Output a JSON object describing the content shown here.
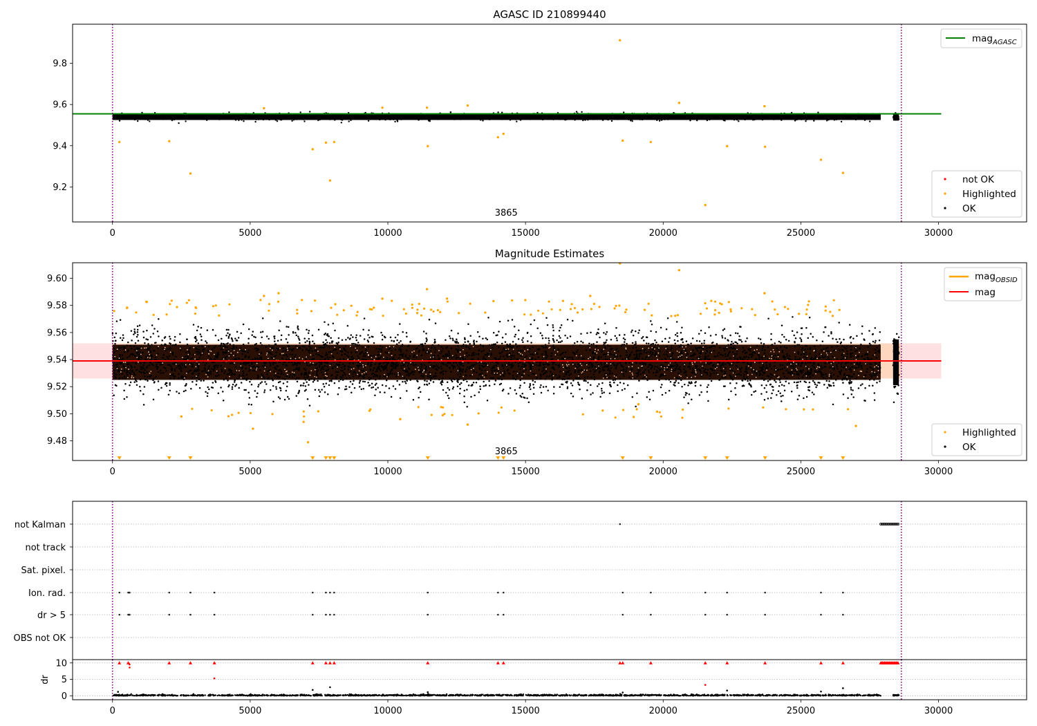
{
  "chart_data": [
    {
      "type": "scatter",
      "title": "AGASC ID 210899440",
      "xlabel": "",
      "ylabel": "",
      "xlim": [
        -1450,
        33200
      ],
      "ylim": [
        9.03,
        9.99
      ],
      "xticks": [
        0,
        5000,
        10000,
        15000,
        20000,
        25000,
        30000
      ],
      "yticks": [
        9.2,
        9.4,
        9.6,
        9.8
      ],
      "vlines": [
        0,
        28650
      ],
      "annotations": [
        {
          "text": "3865",
          "x": 14300
        }
      ],
      "lines": [
        {
          "name": "mag_AGASC",
          "label_main": "mag",
          "label_sub": "AGASC",
          "y": 9.555,
          "x_range": [
            -1450,
            30100
          ],
          "color": "#008000"
        }
      ],
      "series": [
        {
          "name": "not OK",
          "color": "#ff0000",
          "points": []
        },
        {
          "name": "Highlighted",
          "color": "#ffa500",
          "points": [
            [
              18430,
              9.912
            ],
            [
              21530,
              9.112
            ],
            [
              26530,
              9.268
            ],
            [
              25730,
              9.332
            ],
            [
              7900,
              9.231
            ],
            [
              2830,
              9.265
            ],
            [
              11450,
              9.398
            ],
            [
              22320,
              9.398
            ],
            [
              23700,
              9.395
            ],
            [
              19550,
              9.418
            ],
            [
              18530,
              9.425
            ],
            [
              8050,
              9.418
            ],
            [
              2060,
              9.422
            ],
            [
              250,
              9.418
            ],
            [
              7270,
              9.383
            ],
            [
              7750,
              9.415
            ],
            [
              14000,
              9.441
            ],
            [
              14200,
              9.458
            ],
            [
              20580,
              9.608
            ],
            [
              12900,
              9.595
            ],
            [
              23680,
              9.592
            ],
            [
              11420,
              9.585
            ],
            [
              5500,
              9.582
            ],
            [
              9800,
              9.585
            ]
          ]
        },
        {
          "name": "OK",
          "color": "#000000",
          "points": []
        }
      ],
      "band": {
        "center": 9.54,
        "spread": 0.02,
        "x_start": 0,
        "x_end": 27900,
        "x_start2": 28350,
        "x_end2": 28560
      }
    },
    {
      "type": "scatter",
      "title": "Magnitude Estimates",
      "xlabel": "",
      "ylabel": "",
      "xlim": [
        -1450,
        33200
      ],
      "ylim": [
        9.4655,
        9.6115
      ],
      "xticks": [
        0,
        5000,
        10000,
        15000,
        20000,
        25000,
        30000
      ],
      "yticks": [
        9.48,
        9.5,
        9.52,
        9.54,
        9.56,
        9.58,
        9.6
      ],
      "vlines": [
        0,
        28650
      ],
      "annotations": [
        {
          "text": "3865",
          "x": 14300
        }
      ],
      "lines": [
        {
          "name": "mag_OBSID",
          "label_main": "mag",
          "label_sub": "OBSID",
          "color": "#ffa500"
        },
        {
          "name": "mag",
          "label_main": "mag",
          "label_sub": "",
          "y": 9.539,
          "x_range": [
            -1450,
            30100
          ],
          "color": "#ff0000"
        }
      ],
      "spans": [
        {
          "y0": 9.526,
          "y1": 9.552,
          "x_range": [
            -1450,
            30100
          ],
          "color": "#ff0000",
          "alpha": 0.12
        },
        {
          "y0": 9.526,
          "y1": 9.552,
          "x_range": [
            0,
            28650
          ],
          "color": "#ffa500",
          "alpha": 0.15
        }
      ],
      "offscale_markers_x": [
        250,
        2060,
        2830,
        7270,
        7750,
        7900,
        8050,
        11450,
        14000,
        14200,
        18530,
        19550,
        21530,
        22320,
        23700,
        25730,
        26530
      ],
      "series": [
        {
          "name": "Highlighted",
          "color": "#ffa500",
          "points": [
            [
              18430,
              9.611
            ],
            [
              20580,
              9.606
            ],
            [
              11420,
              9.592
            ],
            [
              17350,
              9.587
            ],
            [
              9800,
              9.585
            ],
            [
              5500,
              9.587
            ],
            [
              6030,
              9.589
            ],
            [
              23680,
              9.589
            ],
            [
              12150,
              9.585
            ],
            [
              7100,
              9.479
            ],
            [
              5100,
              9.489
            ],
            [
              12900,
              9.492
            ],
            [
              27000,
              9.491
            ],
            [
              6940,
              9.494
            ],
            [
              10450,
              9.496
            ],
            [
              19100,
              9.507
            ],
            [
              2500,
              9.498
            ]
          ]
        },
        {
          "name": "OK",
          "color": "#000000",
          "points": []
        }
      ],
      "band": {
        "center": 9.538,
        "spread": 0.013,
        "x_start": 0,
        "x_end": 27900,
        "x_start2": 28350,
        "x_end2": 28560
      }
    },
    {
      "type": "scatter",
      "title": "",
      "xlabel": "",
      "ylabel": "",
      "categories": [
        "not Kalman",
        "not track",
        "Sat. pixel.",
        "Ion. rad.",
        "dr > 5",
        "OBS not OK"
      ],
      "xlim": [
        -1450,
        33200
      ],
      "vlines": [
        0,
        28650
      ],
      "flag_events_x": [
        250,
        570,
        600,
        620,
        2060,
        2830,
        3700,
        7270,
        7750,
        7900,
        8050,
        11450,
        14000,
        14200,
        18530,
        19550,
        21530,
        22320,
        23700,
        25730,
        26530
      ],
      "not_kalman": {
        "single_x": 18430,
        "run_start": 27900,
        "run_end": 28560
      }
    },
    {
      "type": "scatter",
      "title": "",
      "xlabel": "",
      "ylabel": "dr",
      "xlim": [
        -1450,
        33200
      ],
      "ylim": [
        -1.2,
        11
      ],
      "xticks": [
        0,
        5000,
        10000,
        15000,
        20000,
        25000,
        30000
      ],
      "yticks": [
        0,
        5,
        10
      ],
      "vlines": [
        0,
        28650
      ],
      "series": [
        {
          "name": "dr > 5 (clipped)",
          "color": "#ff0000",
          "points": [
            [
              250,
              10
            ],
            [
              570,
              10
            ],
            [
              600,
              9.8
            ],
            [
              620,
              9.5
            ],
            [
              2060,
              10
            ],
            [
              2830,
              10
            ],
            [
              3700,
              10
            ],
            [
              7270,
              10
            ],
            [
              7750,
              10
            ],
            [
              7900,
              10
            ],
            [
              8050,
              10
            ],
            [
              11450,
              10
            ],
            [
              14000,
              10
            ],
            [
              14200,
              10
            ],
            [
              18430,
              10
            ],
            [
              18530,
              10
            ],
            [
              19550,
              10
            ],
            [
              21530,
              10
            ],
            [
              22320,
              10
            ],
            [
              23700,
              10
            ],
            [
              25730,
              10
            ],
            [
              26530,
              10
            ],
            [
              620,
              8.6
            ],
            [
              3700,
              5.3
            ],
            [
              21530,
              3.3
            ]
          ]
        },
        {
          "name": "dr",
          "color": "#000000",
          "points": [
            [
              7270,
              1.8
            ],
            [
              7900,
              2.6
            ],
            [
              26530,
              2.3
            ],
            [
              22320,
              1.6
            ],
            [
              25730,
              1.3
            ],
            [
              11450,
              1.1
            ],
            [
              200,
              1.2
            ],
            [
              18530,
              1.0
            ]
          ]
        }
      ],
      "red_run": {
        "start": 27900,
        "end": 28560,
        "y": 10
      }
    }
  ]
}
